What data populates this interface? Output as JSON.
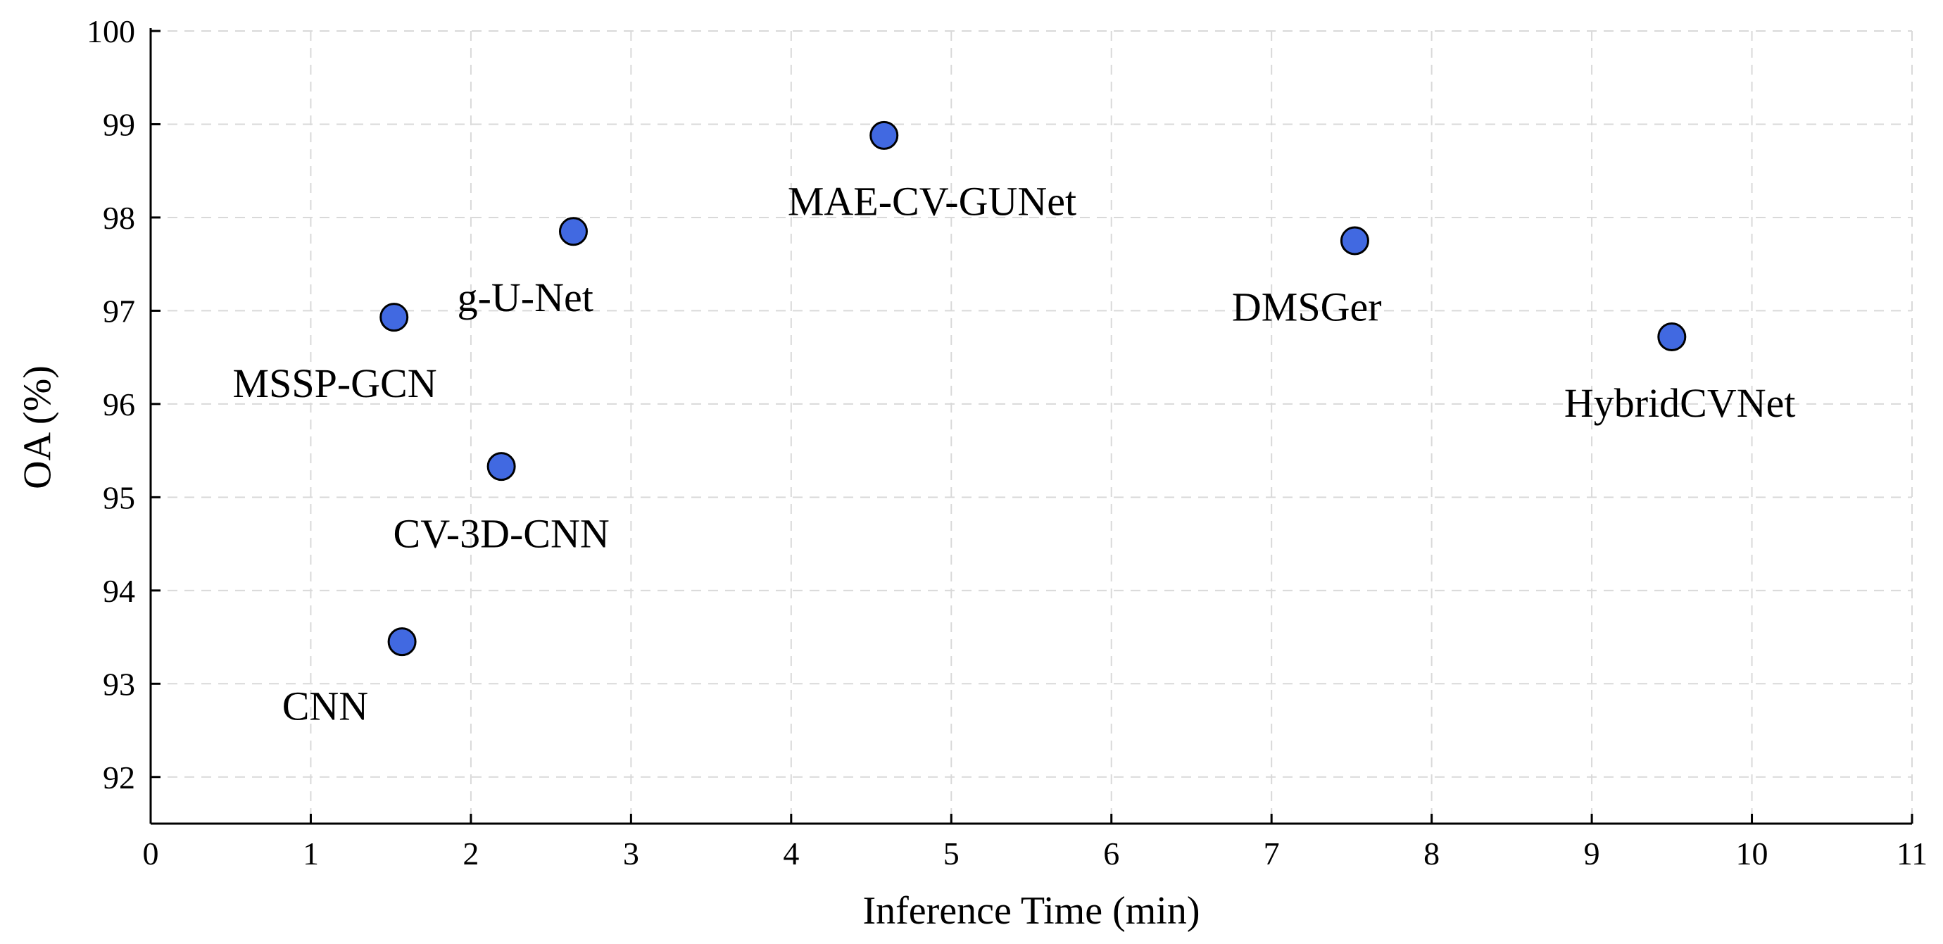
{
  "chart_data": {
    "type": "scatter",
    "title": "",
    "xlabel": "Inference Time (min)",
    "ylabel": "OA (%)",
    "xlim": [
      0,
      11
    ],
    "ylim": [
      91.5,
      100
    ],
    "xticks": [
      0,
      1,
      2,
      3,
      4,
      5,
      6,
      7,
      8,
      9,
      10,
      11
    ],
    "yticks": [
      92,
      93,
      94,
      95,
      96,
      97,
      98,
      99,
      100
    ],
    "grid": true,
    "grid_style": "dashed",
    "legend": "none",
    "marker_color": "#4169e1",
    "points": [
      {
        "label": "CNN",
        "x": 1.57,
        "y": 93.45,
        "label_offset": [
          -0.48,
          -0.7
        ]
      },
      {
        "label": "CV-3D-CNN",
        "x": 2.19,
        "y": 95.33,
        "label_offset": [
          0.0,
          -0.73
        ]
      },
      {
        "label": "MSSP-GCN",
        "x": 1.52,
        "y": 96.93,
        "label_offset": [
          -0.37,
          -0.72
        ]
      },
      {
        "label": "g-U-Net",
        "x": 2.64,
        "y": 97.85,
        "label_offset": [
          -0.3,
          -0.72
        ]
      },
      {
        "label": "MAE-CV-GUNet",
        "x": 4.58,
        "y": 98.88,
        "label_offset": [
          0.3,
          -0.72
        ]
      },
      {
        "label": "DMSGer",
        "x": 7.52,
        "y": 97.75,
        "label_offset": [
          -0.3,
          -0.72
        ]
      },
      {
        "label": "HybridCVNet",
        "x": 9.5,
        "y": 96.72,
        "label_offset": [
          0.05,
          -0.72
        ]
      }
    ]
  }
}
